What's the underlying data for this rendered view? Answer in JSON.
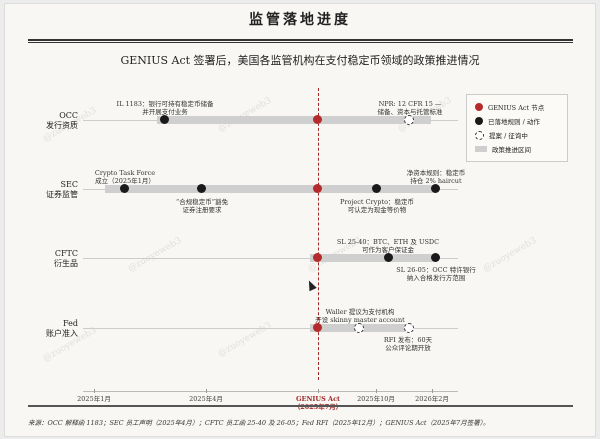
{
  "title": "监管落地进度",
  "subtitle": "GENIUS Act 签署后，美国各监管机构在支付稳定币领域的政策推进情况",
  "colors": {
    "genius": "#b52a2a",
    "done": "#1a1a1a",
    "bar": "#cfcfcf"
  },
  "rows": [
    {
      "name": "OCC",
      "sub": "发行资质",
      "ann": [
        {
          "text1": "IL 1183：银行可持有稳定币储备",
          "text2": "并开展支付业务"
        },
        {
          "text1": "NPR: 12 CFR 15 —",
          "text2": "储备、资本与托管标准"
        }
      ]
    },
    {
      "name": "SEC",
      "sub": "证券监管",
      "ann": [
        {
          "text1": "Crypto Task Force",
          "text2": "成立（2025年1月）"
        },
        {
          "text1": "“合规稳定币”豁免",
          "text2": "证券注册要求"
        },
        {
          "text1": "Project Crypto：稳定币",
          "text2": "可认定为现金等价物"
        },
        {
          "text1": "净资本规则：稳定币",
          "text2": "持仓 2% haircut"
        }
      ]
    },
    {
      "name": "CFTC",
      "sub": "衍生品",
      "ann": [
        {
          "text1": "SL 25-40：BTC、ETH 及 USDC",
          "text2": "可作为客户保证金"
        },
        {
          "text1": "SL 26-05：OCC 特许银行",
          "text2": "纳入合格发行方范围"
        }
      ]
    },
    {
      "name": "Fed",
      "sub": "账户准入",
      "ann": [
        {
          "text1": "Waller 提议为支付机构",
          "text2": "开设 skinny master account"
        },
        {
          "text1": "RFI 发布：60天",
          "text2": "公众评论期开放"
        }
      ]
    }
  ],
  "axis": {
    "ticks": [
      "2025年1月",
      "2025年4月",
      "2025年10月",
      "2026年2月"
    ],
    "genius1": "GENIUS Act",
    "genius2": "（2025年7月）"
  },
  "legend": [
    "GENIUS Act 节点",
    "已落地规则 / 动作",
    "提案 / 征询中",
    "政策推进区间"
  ],
  "source": "来源：OCC 解释函 1183；SEC 员工声明（2025年4月）；CFTC 员工函 25-40 及 26-05；Fed RFI（2025年12月）；GENIUS Act（2025年7月签署）。",
  "watermark": "@zuoyeweb3"
}
